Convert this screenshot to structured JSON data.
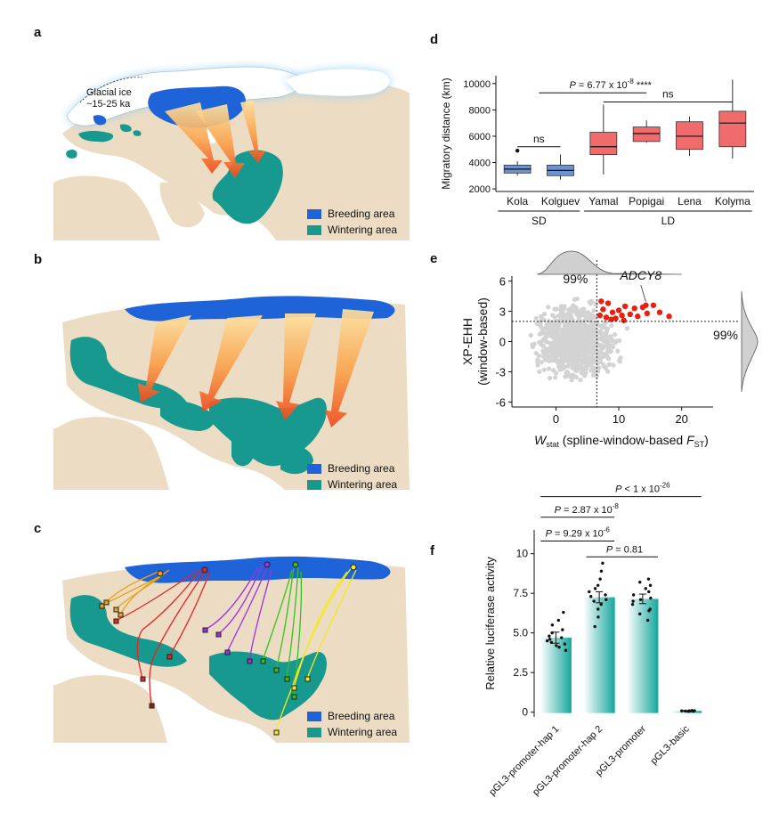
{
  "panels": {
    "a": "a",
    "b": "b",
    "c": "c",
    "d": "d",
    "e": "e",
    "f": "f"
  },
  "map_a": {
    "ice_label_line1": "Glacial ice",
    "ice_label_line2": "~15-25 ka",
    "legend": [
      {
        "label": "Breeding area",
        "color": "#1f63d8"
      },
      {
        "label": "Wintering area",
        "color": "#17998f"
      }
    ]
  },
  "map_b": {
    "legend": [
      {
        "label": "Breeding area",
        "color": "#1f63d8"
      },
      {
        "label": "Wintering area",
        "color": "#17998f"
      }
    ]
  },
  "map_c": {
    "legend": [
      {
        "label": "Breeding area",
        "color": "#1f63d8"
      },
      {
        "label": "Wintering area",
        "color": "#17998f"
      }
    ],
    "track_colors": [
      "#e8a21a",
      "#e8241f",
      "#9b30e0",
      "#33c21c",
      "#f3ea1e",
      "#8b2a10"
    ]
  },
  "colors": {
    "land": "#ecdcc3",
    "breeding": "#1f63d8",
    "wintering": "#17998f",
    "sd_box": "#6c93cf",
    "ld_box": "#f06b6b",
    "red_point": "#e8200f",
    "grey_point": "#d3d3d3",
    "bar_end": "#16a79c"
  },
  "chart_data": [
    {
      "id": "d",
      "type": "box",
      "ylabel": "Migratory distance (km)",
      "yticks": [
        2000,
        4000,
        6000,
        8000,
        10000
      ],
      "ylim": [
        1800,
        10600
      ],
      "categories": [
        "Kola",
        "Kolguev",
        "Yamal",
        "Popigai",
        "Lena",
        "Kolyma"
      ],
      "groups": [
        {
          "name": "SD",
          "members": [
            "Kola",
            "Kolguev"
          ]
        },
        {
          "name": "LD",
          "members": [
            "Yamal",
            "Popigai",
            "Lena",
            "Kolyma"
          ]
        }
      ],
      "boxes": [
        {
          "name": "Kola",
          "min": 3000,
          "q1": 3200,
          "median": 3500,
          "q3": 3800,
          "max": 4100,
          "outliers": [
            4900
          ],
          "group": "SD"
        },
        {
          "name": "Kolguev",
          "min": 2700,
          "q1": 3000,
          "median": 3400,
          "q3": 3800,
          "max": 4600,
          "outliers": [],
          "group": "SD"
        },
        {
          "name": "Yamal",
          "min": 3100,
          "q1": 4600,
          "median": 5200,
          "q3": 6300,
          "max": 8400,
          "outliers": [],
          "group": "LD"
        },
        {
          "name": "Popigai",
          "min": 5500,
          "q1": 5600,
          "median": 6200,
          "q3": 6700,
          "max": 7200,
          "outliers": [],
          "group": "LD"
        },
        {
          "name": "Lena",
          "min": 4500,
          "q1": 5000,
          "median": 6000,
          "q3": 7100,
          "max": 7500,
          "outliers": [],
          "group": "LD"
        },
        {
          "name": "Kolyma",
          "min": 4300,
          "q1": 5200,
          "median": 7000,
          "q3": 7900,
          "max": 10300,
          "outliers": [],
          "group": "LD"
        }
      ],
      "annotations": [
        {
          "text": "P = 6.77 x 10",
          "sup": "-8",
          "suffix": " ****"
        },
        {
          "text": "ns"
        },
        {
          "text": "ns"
        }
      ]
    },
    {
      "id": "e",
      "type": "scatter",
      "ylabel_line1": "XP-EHH",
      "ylabel_line2": "(window-based)",
      "xlabel_w": "W",
      "xlabel_sub": "stat",
      "xlabel_mid": " (spline-window-based ",
      "xlabel_f": "F",
      "xlabel_fsub": "ST",
      "xlabel_end": ")",
      "xticks": [
        0,
        10,
        20
      ],
      "yticks": [
        -6,
        -3,
        0,
        3,
        6
      ],
      "xlim": [
        -7,
        25
      ],
      "ylim": [
        -6.5,
        6.5
      ],
      "x_threshold": 6.5,
      "y_threshold": 2.0,
      "threshold_label_x": "99%",
      "threshold_label_y": "99%",
      "gene_label": "ADCY8",
      "highlight_points": [
        [
          7,
          2.6
        ],
        [
          7.5,
          3.2
        ],
        [
          8,
          2.4
        ],
        [
          8.3,
          3.8
        ],
        [
          9,
          2.9
        ],
        [
          9.5,
          2.3
        ],
        [
          10,
          3.1
        ],
        [
          10.5,
          2.6
        ],
        [
          11,
          3.5
        ],
        [
          11.8,
          2.7
        ],
        [
          12.5,
          3.3
        ],
        [
          13,
          2.5
        ],
        [
          13.8,
          3.4
        ],
        [
          14.5,
          2.8
        ],
        [
          15.5,
          3.6
        ],
        [
          16.5,
          2.9
        ],
        [
          18,
          2.5
        ],
        [
          7.2,
          4.0
        ],
        [
          8.8,
          2.2
        ],
        [
          10.8,
          2.1
        ]
      ],
      "gene_point": [
        14.3,
        3.6
      ]
    },
    {
      "id": "f",
      "type": "bar",
      "ylabel": "Relative luciferase activity",
      "yticks": [
        0,
        2.5,
        5.0,
        7.5,
        10.0
      ],
      "ylim": [
        -0.3,
        11.5
      ],
      "categories": [
        "pGL3-promoter-hap 1",
        "pGL3-promoter-hap 2",
        "pGL3-promoter",
        "pGL3-basic"
      ],
      "values": [
        4.7,
        7.25,
        7.15,
        0.08
      ],
      "errors": [
        0.35,
        0.35,
        0.3,
        0.02
      ],
      "points": [
        [
          4.1,
          4.3,
          4.4,
          4.5,
          4.6,
          4.7,
          4.8,
          5.0,
          5.2,
          5.5,
          5.8,
          6.3,
          3.9,
          4.2
        ],
        [
          5.4,
          6.0,
          6.5,
          6.8,
          7.0,
          7.1,
          7.3,
          7.4,
          7.6,
          7.8,
          8.0,
          8.4,
          8.9,
          9.4
        ],
        [
          5.8,
          6.2,
          6.5,
          6.8,
          7.0,
          7.1,
          7.2,
          7.4,
          7.6,
          7.8,
          8.0,
          8.2,
          8.4,
          6.4
        ],
        [
          0.05,
          0.07,
          0.08,
          0.09,
          0.1,
          0.06,
          0.08,
          0.07
        ]
      ],
      "comparisons": [
        {
          "text": "P = 9.29 x 10",
          "sup": "-6"
        },
        {
          "text": "P = 2.87 x 10",
          "sup": "-8"
        },
        {
          "text": "P < 1 x 10",
          "sup": "-26"
        },
        {
          "text": "P = 0.81",
          "sup": ""
        }
      ]
    }
  ]
}
